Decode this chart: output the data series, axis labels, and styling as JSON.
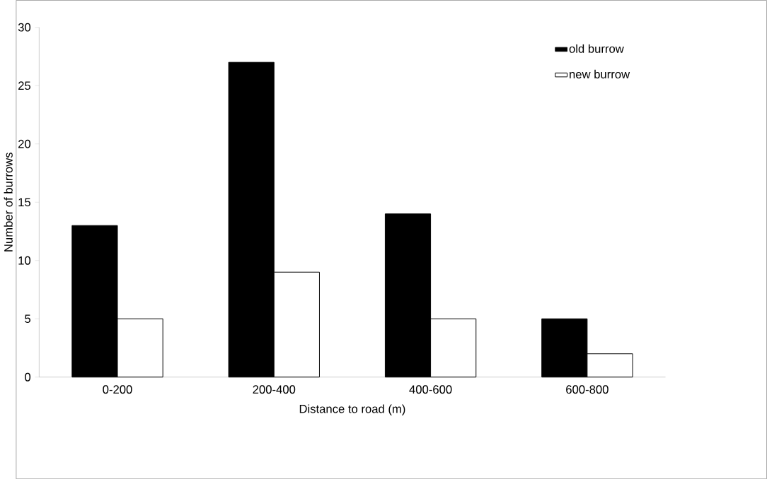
{
  "chart_data": {
    "type": "bar",
    "xlabel": "Distance to road (m)",
    "ylabel": "Number of burrows",
    "categories": [
      "0-200",
      "200-400",
      "400-600",
      "600-800"
    ],
    "series": [
      {
        "name": "old burrow",
        "color": "#000000",
        "values": [
          13,
          27,
          14,
          5
        ]
      },
      {
        "name": "new burrow",
        "color": "#ffffff",
        "values": [
          5,
          9,
          5,
          2
        ]
      }
    ],
    "ylim": [
      0,
      30
    ],
    "yticks": [
      0,
      5,
      10,
      15,
      20,
      25,
      30
    ],
    "legend": "top right"
  }
}
